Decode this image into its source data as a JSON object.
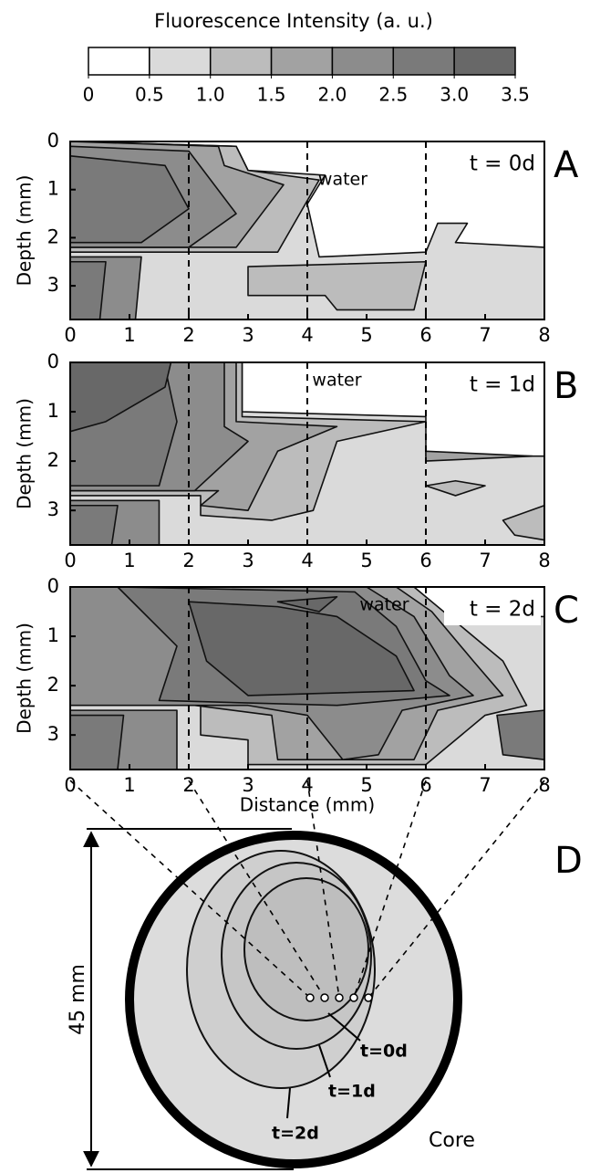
{
  "colorbar": {
    "title": "Fluorescence Intensity (a. u.)",
    "ticks": [
      0,
      0.5,
      {
        "value": 1,
        "label": "1.0"
      },
      1.5,
      {
        "value": 2,
        "label": "2.0"
      },
      2.5,
      {
        "value": 3,
        "label": "3.0"
      },
      3.5
    ],
    "colors": [
      "#ffffff",
      "#dadada",
      "#bcbcbc",
      "#a2a2a2",
      "#8c8c8c",
      "#7a7a7a",
      "#686868"
    ]
  },
  "chart_data": [
    {
      "type": "contour",
      "panel_label": "A",
      "annotations": [
        "water",
        "t = 0d"
      ],
      "ylabel": "Depth (mm)",
      "xlim": [
        0,
        8
      ],
      "xticks": [
        0,
        1,
        2,
        3,
        4,
        5,
        6,
        7,
        8
      ],
      "ylim": [
        0,
        3.7
      ],
      "yticks": [
        0,
        1,
        2,
        3
      ],
      "y_inverted": true,
      "dashed_x": [
        2,
        4,
        6
      ],
      "regions": [
        {
          "level": 0.5,
          "points": [
            [
              0,
              0
            ],
            [
              2.8,
              0.1
            ],
            [
              3,
              0.6
            ],
            [
              4.3,
              0.7
            ],
            [
              4,
              1.3
            ],
            [
              4.2,
              2.4
            ],
            [
              6,
              2.3
            ],
            [
              6.2,
              1.7
            ],
            [
              6.7,
              1.7
            ],
            [
              6.5,
              2.1
            ],
            [
              8,
              2.2
            ],
            [
              8,
              3.7
            ],
            [
              0,
              3.7
            ]
          ]
        },
        {
          "level": 1,
          "points": [
            [
              0,
              0
            ],
            [
              2.8,
              0.1
            ],
            [
              3,
              0.6
            ],
            [
              4.2,
              0.8
            ],
            [
              3.5,
              2.3
            ],
            [
              0,
              2.3
            ]
          ]
        },
        {
          "level": 1,
          "points": [
            [
              3,
              2.6
            ],
            [
              6,
              2.5
            ],
            [
              5.8,
              3.5
            ],
            [
              4.5,
              3.5
            ],
            [
              4.3,
              3.2
            ],
            [
              3,
              3.2
            ]
          ]
        },
        {
          "level": 1.5,
          "points": [
            [
              0,
              0
            ],
            [
              2.5,
              0.1
            ],
            [
              2.6,
              0.5
            ],
            [
              3.6,
              0.9
            ],
            [
              2.8,
              2.2
            ],
            [
              0,
              2.2
            ]
          ]
        },
        {
          "level": 2,
          "points": [
            [
              0,
              0.1
            ],
            [
              2,
              0.2
            ],
            [
              2.8,
              1.5
            ],
            [
              2,
              2.2
            ],
            [
              0,
              2.2
            ]
          ]
        },
        {
          "level": 2.5,
          "points": [
            [
              0,
              0.3
            ],
            [
              1.6,
              0.5
            ],
            [
              2,
              1.4
            ],
            [
              1.2,
              2.1
            ],
            [
              0,
              2.1
            ]
          ]
        },
        {
          "level": 2,
          "points": [
            [
              0,
              2.4
            ],
            [
              1.2,
              2.4
            ],
            [
              1.1,
              3.7
            ],
            [
              0,
              3.7
            ]
          ]
        },
        {
          "level": 2.5,
          "points": [
            [
              0,
              2.5
            ],
            [
              0.6,
              2.5
            ],
            [
              0.5,
              3.7
            ],
            [
              0,
              3.7
            ]
          ]
        }
      ]
    },
    {
      "type": "contour",
      "panel_label": "B",
      "annotations": [
        "water",
        "t = 1d"
      ],
      "ylabel": "Depth (mm)",
      "xlim": [
        0,
        8
      ],
      "xticks": [
        0,
        1,
        2,
        3,
        4,
        5,
        6,
        7,
        8
      ],
      "ylim": [
        0,
        3.7
      ],
      "yticks": [
        0,
        1,
        2,
        3
      ],
      "y_inverted": true,
      "dashed_x": [
        2,
        4,
        6
      ],
      "regions": [
        {
          "level": 0.5,
          "points": [
            [
              0,
              0
            ],
            [
              2.9,
              0
            ],
            [
              2.9,
              1
            ],
            [
              6,
              1.1
            ],
            [
              6,
              1.9
            ],
            [
              8,
              1.9
            ],
            [
              8,
              3.7
            ],
            [
              0,
              3.7
            ]
          ]
        },
        {
          "level": 1,
          "points": [
            [
              0,
              0
            ],
            [
              2.9,
              0
            ],
            [
              2.9,
              1.1
            ],
            [
              6,
              1.2
            ],
            [
              4.5,
              1.6
            ],
            [
              4.1,
              3
            ],
            [
              3.4,
              3.2
            ],
            [
              2.2,
              3.1
            ],
            [
              2.2,
              2.7
            ],
            [
              0,
              2.7
            ]
          ]
        },
        {
          "level": 1.5,
          "points": [
            [
              0,
              0
            ],
            [
              2.8,
              0
            ],
            [
              2.8,
              1.2
            ],
            [
              4.5,
              1.3
            ],
            [
              3.5,
              1.8
            ],
            [
              3,
              3
            ],
            [
              2.2,
              2.9
            ],
            [
              2.5,
              2.6
            ],
            [
              0,
              2.6
            ]
          ]
        },
        {
          "level": 2,
          "points": [
            [
              0,
              0
            ],
            [
              2.6,
              0
            ],
            [
              2.6,
              1.3
            ],
            [
              3,
              1.6
            ],
            [
              2.1,
              2.6
            ],
            [
              0,
              2.6
            ]
          ]
        },
        {
          "level": 2.5,
          "points": [
            [
              0,
              0.1
            ],
            [
              1.6,
              0.1
            ],
            [
              1.8,
              1.2
            ],
            [
              1.5,
              2.5
            ],
            [
              0,
              2.5
            ]
          ]
        },
        {
          "level": 3,
          "points": [
            [
              0,
              0
            ],
            [
              1.7,
              0
            ],
            [
              1.6,
              0.5
            ],
            [
              0.6,
              1.2
            ],
            [
              0,
              1.4
            ]
          ]
        },
        {
          "level": 2,
          "points": [
            [
              0,
              2.8
            ],
            [
              1.5,
              2.8
            ],
            [
              1.5,
              3.7
            ],
            [
              0,
              3.7
            ]
          ]
        },
        {
          "level": 2.5,
          "points": [
            [
              0,
              2.9
            ],
            [
              0.8,
              2.9
            ],
            [
              0.7,
              3.7
            ],
            [
              0,
              3.7
            ]
          ]
        },
        {
          "level": 1.5,
          "points": [
            [
              6,
              1.8
            ],
            [
              7.8,
              1.9
            ],
            [
              6,
              2
            ]
          ]
        },
        {
          "level": 1,
          "points": [
            [
              6.5,
              2.4
            ],
            [
              7,
              2.5
            ],
            [
              6.5,
              2.7
            ],
            [
              6,
              2.5
            ]
          ]
        },
        {
          "level": 1,
          "points": [
            [
              7.3,
              3.2
            ],
            [
              8,
              2.9
            ],
            [
              8,
              3.6
            ],
            [
              7.5,
              3.5
            ]
          ]
        }
      ]
    },
    {
      "type": "contour",
      "panel_label": "C",
      "annotations": [
        "water",
        "t = 2d"
      ],
      "ylabel": "Depth (mm)",
      "xlabel": "Distance (mm)",
      "xlim": [
        0,
        8
      ],
      "xticks": [
        0,
        1,
        2,
        3,
        4,
        5,
        6,
        7,
        8
      ],
      "ylim": [
        0,
        3.7
      ],
      "yticks": [
        0,
        1,
        2,
        3
      ],
      "y_inverted": true,
      "dashed_x": [
        2,
        4,
        6
      ],
      "regions": [
        {
          "level": 0.5,
          "points": [
            [
              0,
              0
            ],
            [
              5.8,
              0
            ],
            [
              6.3,
              0.6
            ],
            [
              8,
              0.6
            ],
            [
              8,
              3.7
            ],
            [
              0,
              3.7
            ]
          ]
        },
        {
          "level": 1,
          "points": [
            [
              0,
              0
            ],
            [
              5.8,
              0
            ],
            [
              6.3,
              0.5
            ],
            [
              7.3,
              1.5
            ],
            [
              7.7,
              2.4
            ],
            [
              7,
              2.6
            ],
            [
              6.4,
              3.2
            ],
            [
              6,
              3.6
            ],
            [
              3,
              3.6
            ],
            [
              3,
              3.1
            ],
            [
              2.2,
              3
            ],
            [
              2.2,
              2.4
            ],
            [
              0,
              2.4
            ]
          ]
        },
        {
          "level": 1.5,
          "points": [
            [
              0,
              0
            ],
            [
              5.5,
              0
            ],
            [
              6.1,
              0.5
            ],
            [
              6.8,
              1.5
            ],
            [
              7.3,
              2.2
            ],
            [
              6.2,
              2.5
            ],
            [
              5.8,
              3.5
            ],
            [
              3.5,
              3.5
            ],
            [
              3.4,
              2.6
            ],
            [
              2.1,
              2.4
            ],
            [
              0,
              2.4
            ]
          ]
        },
        {
          "level": 2,
          "points": [
            [
              0,
              0
            ],
            [
              5,
              0
            ],
            [
              5.8,
              0.6
            ],
            [
              6.4,
              1.8
            ],
            [
              6.8,
              2.2
            ],
            [
              5.6,
              2.5
            ],
            [
              5.2,
              3.4
            ],
            [
              4.6,
              3.5
            ],
            [
              4,
              2.6
            ],
            [
              3,
              2.4
            ],
            [
              0,
              2.4
            ]
          ]
        },
        {
          "level": 2.5,
          "points": [
            [
              0.8,
              0
            ],
            [
              4.8,
              0.1
            ],
            [
              5.5,
              0.8
            ],
            [
              6,
              1.9
            ],
            [
              6.4,
              2.2
            ],
            [
              4.5,
              2.4
            ],
            [
              1.5,
              2.3
            ],
            [
              1.8,
              1.2
            ]
          ]
        },
        {
          "level": 3,
          "points": [
            [
              2,
              0.3
            ],
            [
              3.5,
              0.4
            ],
            [
              4.5,
              0.6
            ],
            [
              5.5,
              1.4
            ],
            [
              5.8,
              2.1
            ],
            [
              3,
              2.2
            ],
            [
              2.3,
              1.5
            ]
          ]
        },
        {
          "level": 3,
          "points": [
            [
              3.5,
              0.3
            ],
            [
              4.5,
              0.2
            ],
            [
              4.2,
              0.5
            ]
          ]
        },
        {
          "level": 2,
          "points": [
            [
              0,
              2.5
            ],
            [
              1.8,
              2.5
            ],
            [
              1.8,
              3.7
            ],
            [
              0,
              3.7
            ]
          ]
        },
        {
          "level": 2.5,
          "points": [
            [
              0,
              2.6
            ],
            [
              0.9,
              2.6
            ],
            [
              0.8,
              3.7
            ],
            [
              0,
              3.7
            ]
          ]
        },
        {
          "level": 2.5,
          "points": [
            [
              7.2,
              2.6
            ],
            [
              8,
              2.5
            ],
            [
              8,
              3.5
            ],
            [
              7.3,
              3.4
            ]
          ]
        }
      ]
    }
  ],
  "diagram": {
    "label": "D",
    "scale_label": "45 mm",
    "contours": [
      "t=0d",
      "t=1d",
      "t=2d"
    ],
    "core_label": "Core"
  }
}
